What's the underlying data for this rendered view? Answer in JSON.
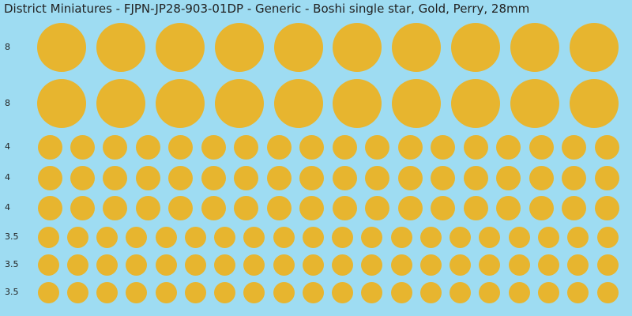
{
  "title": "District Miniatures - FJPN-JP28-903-01DP - Generic - Boshi single star, Gold, Perry, 28mm",
  "colors": {
    "background": "#9edcf2",
    "dot": "#e7b52f",
    "text": "#222222"
  },
  "rows": [
    {
      "label": "8",
      "count": 10
    },
    {
      "label": "8",
      "count": 10
    },
    {
      "label": "4",
      "count": 18
    },
    {
      "label": "4",
      "count": 18
    },
    {
      "label": "4",
      "count": 18
    },
    {
      "label": "3.5",
      "count": 20
    },
    {
      "label": "3.5",
      "count": 20
    },
    {
      "label": "3.5",
      "count": 20
    }
  ]
}
